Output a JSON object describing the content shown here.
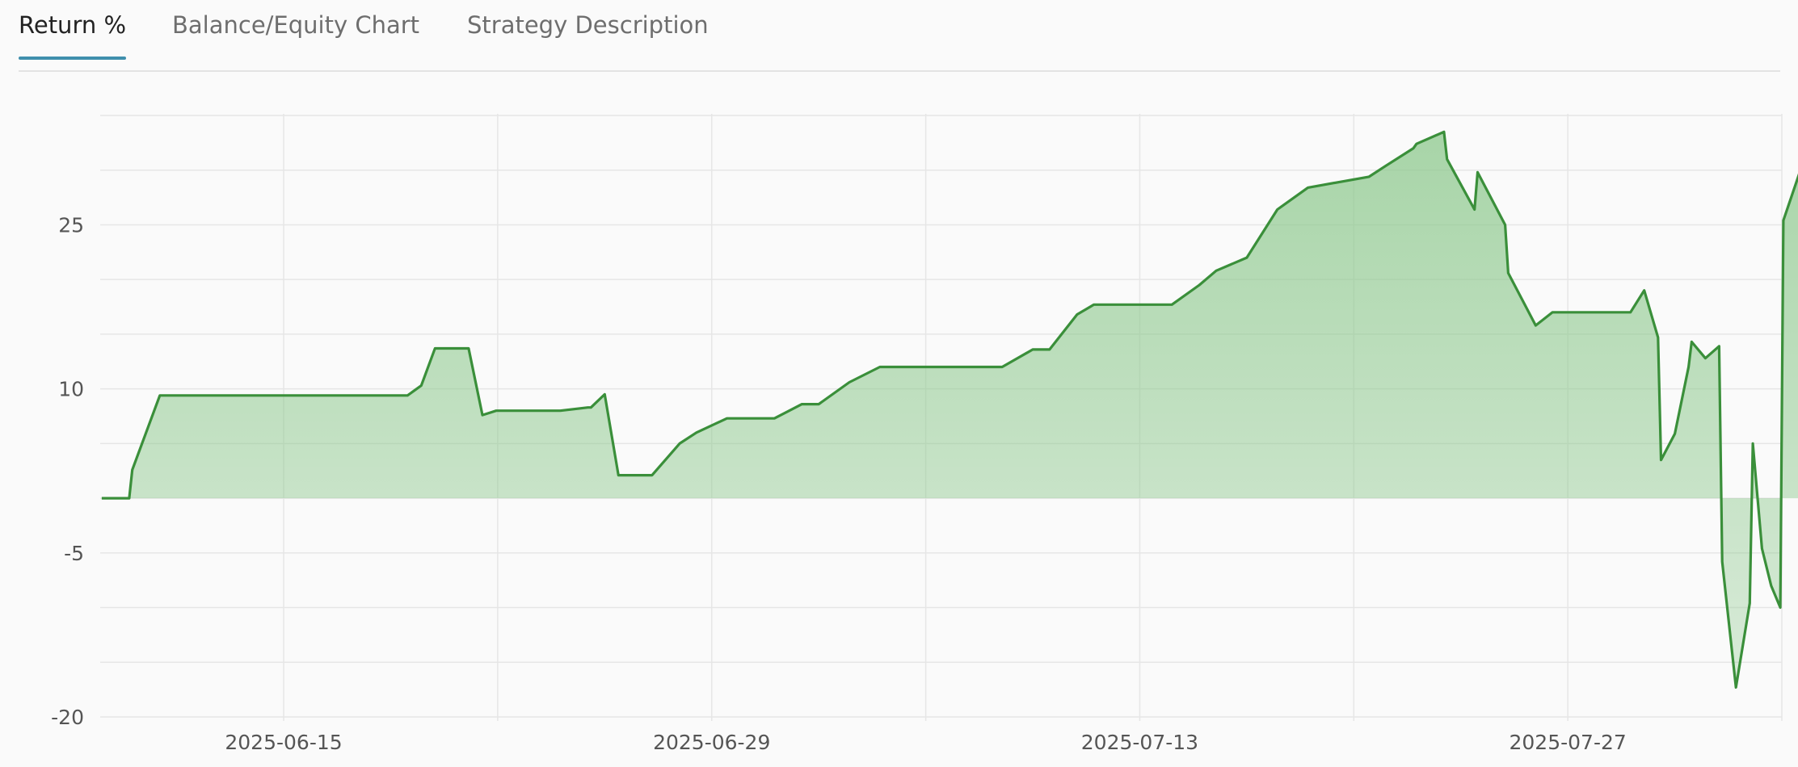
{
  "tabs": [
    {
      "label": "Return %",
      "active": true
    },
    {
      "label": "Balance/Equity Chart",
      "active": false
    },
    {
      "label": "Strategy Description",
      "active": false
    }
  ],
  "colors": {
    "line": "#3a8f3a",
    "fill": "#8cc88c",
    "tab_underline": "#3f8fad",
    "grid": "#e6e6e6"
  },
  "chart_data": {
    "type": "area",
    "title": "",
    "xlabel": "",
    "ylabel": "",
    "ylim": [
      -20,
      35
    ],
    "xlim": [
      "2025-06-09",
      "2025-08-03"
    ],
    "yticks": [
      -20,
      -5,
      10,
      25
    ],
    "yticklabels": [
      "-20",
      "-5",
      "10",
      "25"
    ],
    "xticks": [
      "2025-06-15",
      "2025-06-29",
      "2025-07-13",
      "2025-07-27"
    ],
    "baseline": 0,
    "grid": true,
    "series": [
      {
        "points": [
          [
            "2025-06-09",
            0.0
          ],
          [
            "2025-06-09",
            0.0
          ],
          [
            "2025-06-10",
            2.6
          ],
          [
            "2025-06-10",
            9.4
          ],
          [
            "2025-06-13",
            9.4
          ],
          [
            "2025-06-14",
            9.4
          ],
          [
            "2025-06-16",
            9.4
          ],
          [
            "2025-06-18",
            9.4
          ],
          [
            "2025-06-19",
            9.4
          ],
          [
            "2025-06-19",
            10.3
          ],
          [
            "2025-06-19",
            13.7
          ],
          [
            "2025-06-21",
            13.7
          ],
          [
            "2025-06-21",
            7.6
          ],
          [
            "2025-06-21",
            8.0
          ],
          [
            "2025-06-24",
            8.0
          ],
          [
            "2025-06-24",
            8.3
          ],
          [
            "2025-06-25",
            8.3
          ],
          [
            "2025-06-25",
            9.5
          ],
          [
            "2025-06-25",
            2.1
          ],
          [
            "2025-06-27",
            2.1
          ],
          [
            "2025-06-27",
            5.0
          ],
          [
            "2025-06-28",
            6.0
          ],
          [
            "2025-06-29",
            7.3
          ],
          [
            "2025-06-30",
            7.3
          ],
          [
            "2025-07-01",
            7.3
          ],
          [
            "2025-07-01",
            8.6
          ],
          [
            "2025-07-02",
            8.6
          ],
          [
            "2025-07-03",
            10.6
          ],
          [
            "2025-07-04",
            12.0
          ],
          [
            "2025-07-06",
            12.0
          ],
          [
            "2025-07-08",
            12.0
          ],
          [
            "2025-07-09",
            13.6
          ],
          [
            "2025-07-10",
            13.6
          ],
          [
            "2025-07-10",
            16.8
          ],
          [
            "2025-07-11",
            17.7
          ],
          [
            "2025-07-12",
            17.7
          ],
          [
            "2025-07-14",
            17.7
          ],
          [
            "2025-07-14",
            19.5
          ],
          [
            "2025-07-15",
            20.8
          ],
          [
            "2025-07-16",
            22.0
          ],
          [
            "2025-07-17",
            26.4
          ],
          [
            "2025-07-18",
            28.4
          ],
          [
            "2025-07-20",
            29.4
          ],
          [
            "2025-07-21",
            30.4
          ],
          [
            "2025-07-21",
            32.0
          ],
          [
            "2025-07-22",
            32.4
          ],
          [
            "2025-07-22",
            33.5
          ],
          [
            "2025-07-23",
            31.0
          ],
          [
            "2025-07-23",
            26.4
          ],
          [
            "2025-07-24",
            29.8
          ],
          [
            "2025-07-24",
            25.0
          ],
          [
            "2025-07-25",
            20.6
          ],
          [
            "2025-07-25",
            15.8
          ],
          [
            "2025-07-26",
            17.0
          ],
          [
            "2025-07-28",
            17.0
          ],
          [
            "2025-07-29",
            17.0
          ],
          [
            "2025-07-29",
            19.0
          ],
          [
            "2025-07-29",
            14.7
          ],
          [
            "2025-07-30",
            3.5
          ],
          [
            "2025-07-30",
            5.9
          ],
          [
            "2025-07-30",
            12.0
          ],
          [
            "2025-07-31",
            14.3
          ],
          [
            "2025-07-31",
            12.8
          ],
          [
            "2025-07-31",
            13.9
          ],
          [
            "2025-08-01",
            -5.8
          ],
          [
            "2025-08-01",
            -17.3
          ],
          [
            "2025-08-01",
            -9.6
          ],
          [
            "2025-08-02",
            5.0
          ],
          [
            "2025-08-02",
            -4.6
          ],
          [
            "2025-08-02",
            -8.0
          ],
          [
            "2025-08-02",
            -10.0
          ],
          [
            "2025-08-03",
            25.4
          ],
          [
            "2025-08-03",
            32.8
          ]
        ]
      }
    ]
  }
}
